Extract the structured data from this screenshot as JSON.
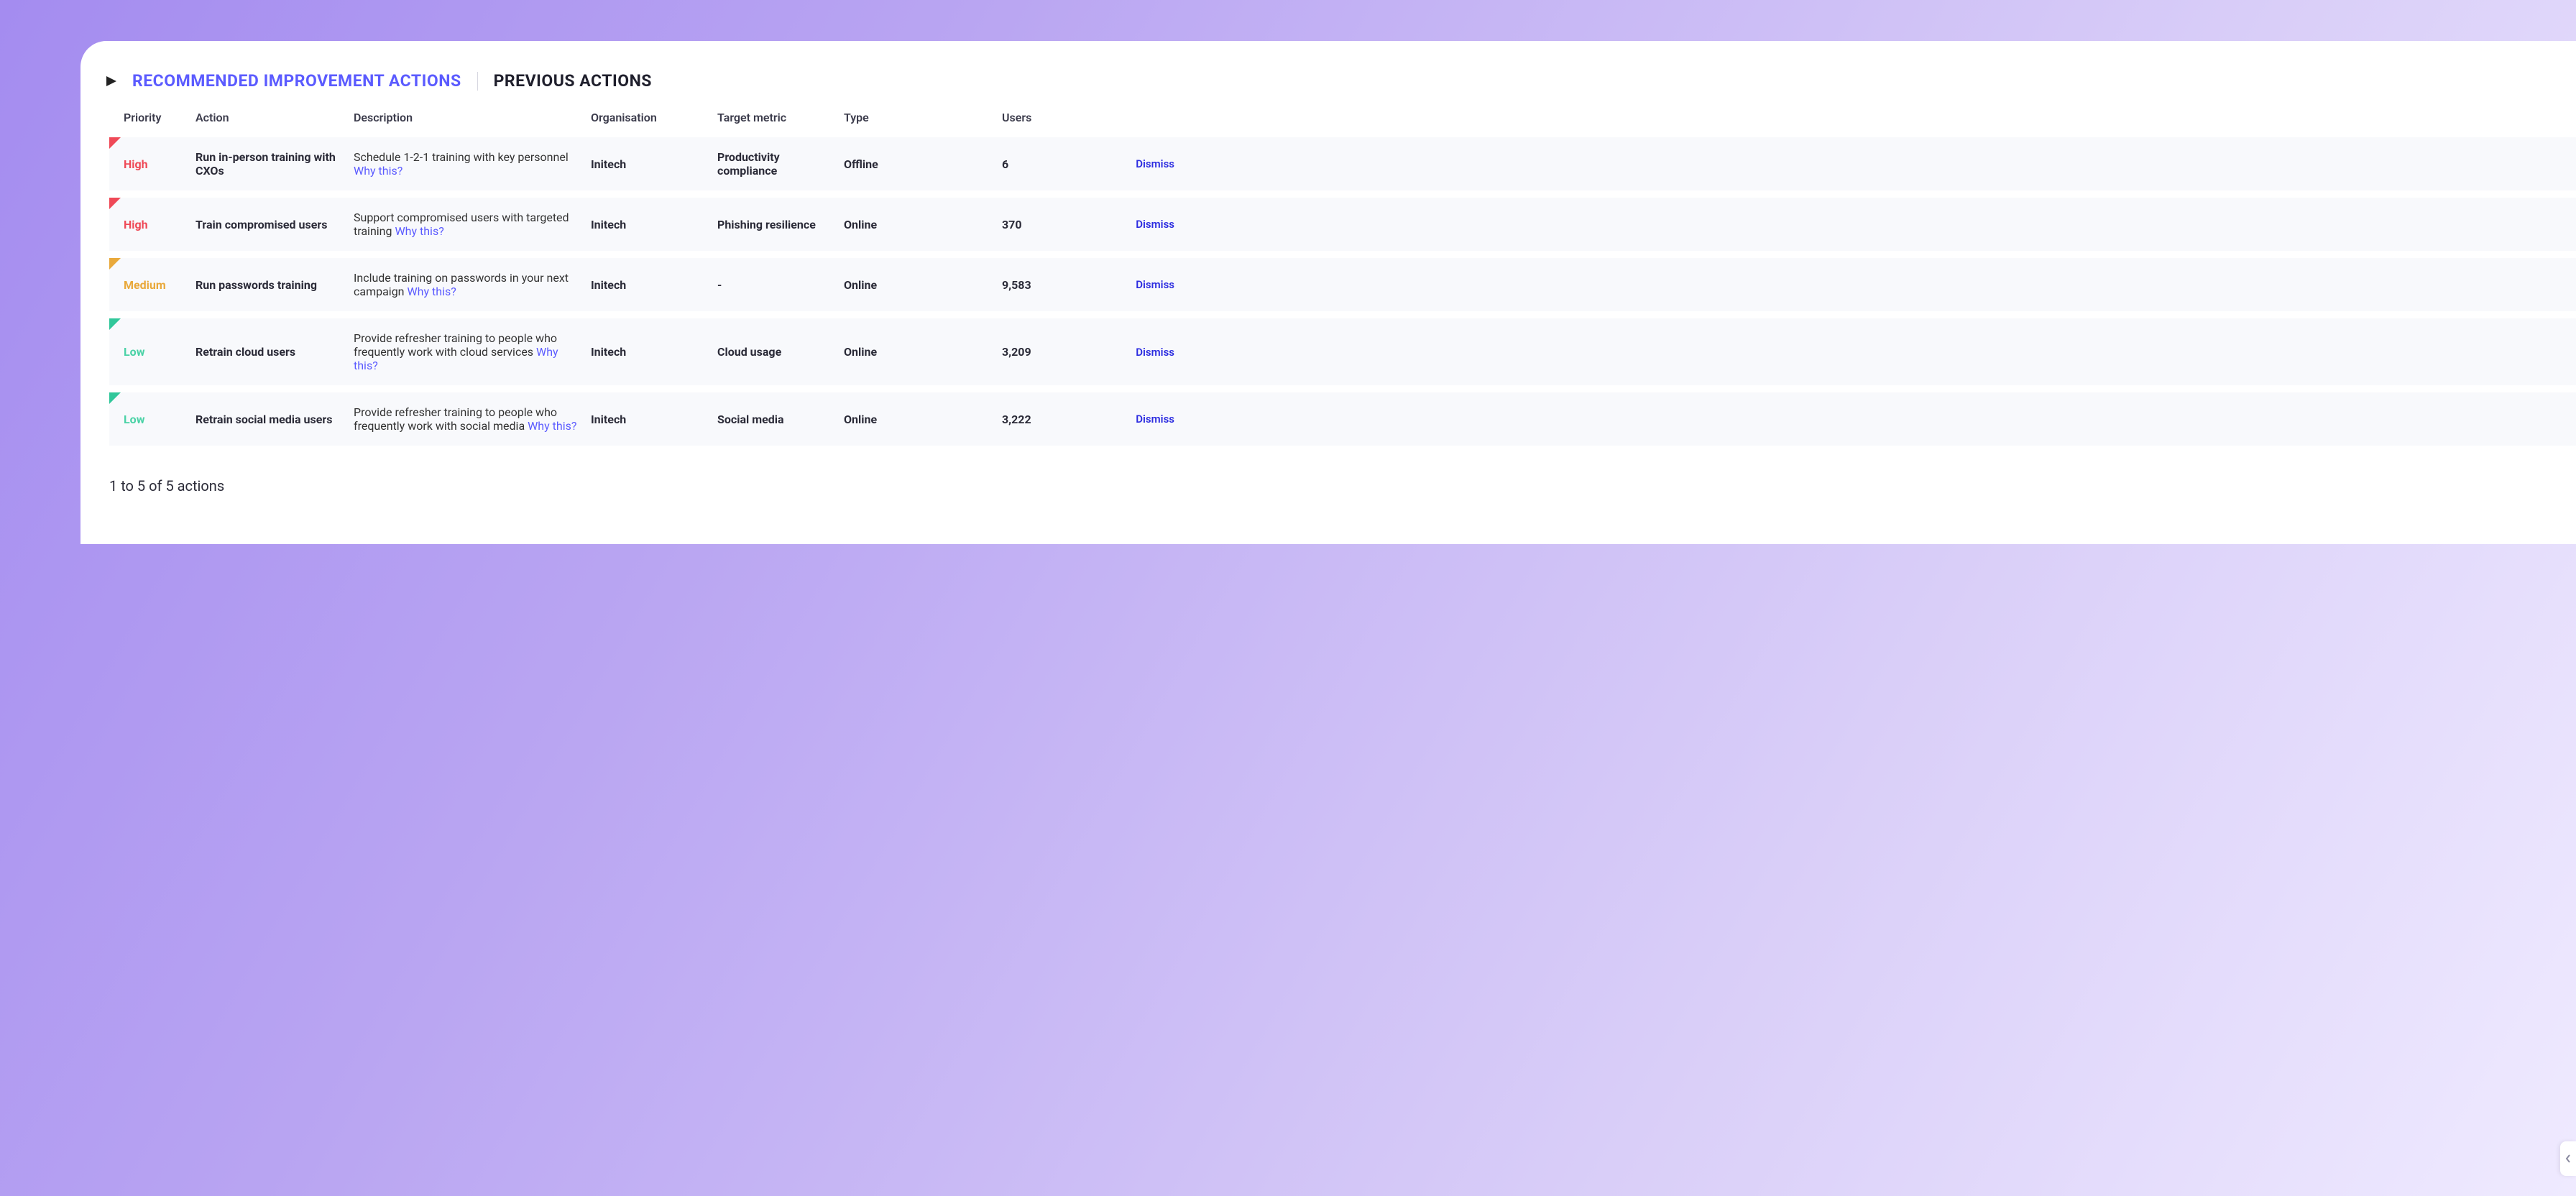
{
  "background_gradient": [
    "#a48cf0",
    "#b9a5f2",
    "#d9cef8",
    "#efeaff"
  ],
  "card_background": "#ffffff",
  "tabs": {
    "active": "RECOMMENDED IMPROVEMENT ACTIONS",
    "inactive": "PREVIOUS ACTIONS",
    "active_color": "#5b5bff",
    "inactive_color": "#1f1f2c"
  },
  "columns": {
    "priority": "Priority",
    "action": "Action",
    "description": "Description",
    "organisation": "Organisation",
    "target": "Target metric",
    "type": "Type",
    "users": "Users"
  },
  "why_label": "Why this?",
  "dismiss_label": "Dismiss",
  "priority_colors": {
    "High": "#ef4957",
    "Medium": "#e9a93b",
    "Low": "#4ad2a6"
  },
  "row_bg": "#f8f9fc",
  "rows": [
    {
      "priority": "High",
      "priority_class": "high",
      "action": "Run in-person training with CXOs",
      "description": "Schedule 1-2-1 training with key personnel",
      "organisation": "Initech",
      "target": "Productivity compliance",
      "type": "Offline",
      "users": "6"
    },
    {
      "priority": "High",
      "priority_class": "high",
      "action": "Train compromised users",
      "description": "Support compromised users with targeted training",
      "organisation": "Initech",
      "target": "Phishing resilience",
      "type": "Online",
      "users": "370"
    },
    {
      "priority": "Medium",
      "priority_class": "medium",
      "action": "Run passwords training",
      "description": "Include training on passwords in your next campaign",
      "organisation": "Initech",
      "target": "-",
      "type": "Online",
      "users": "9,583"
    },
    {
      "priority": "Low",
      "priority_class": "low",
      "action": "Retrain cloud users",
      "description": "Provide refresher training to people who frequently work with cloud services",
      "organisation": "Initech",
      "target": "Cloud usage",
      "type": "Online",
      "users": "3,209"
    },
    {
      "priority": "Low",
      "priority_class": "low",
      "action": "Retrain social media users",
      "description": "Provide refresher training to people who frequently work with social media",
      "organisation": "Initech",
      "target": "Social media",
      "type": "Online",
      "users": "3,222"
    }
  ],
  "footer": "1 to 5 of 5 actions"
}
